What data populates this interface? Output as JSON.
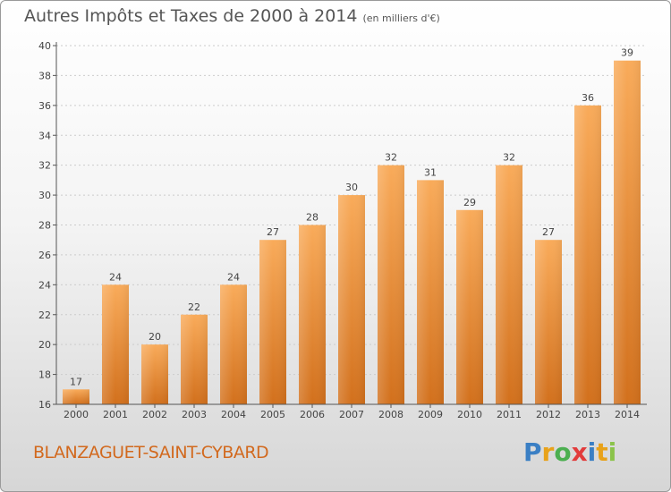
{
  "title": "Autres Impôts et Taxes de 2000 à 2014",
  "title_unit": "(en milliers d'€)",
  "commune": "BLANZAGUET-SAINT-CYBARD",
  "logo": {
    "letters": [
      "P",
      "r",
      "o",
      "x",
      "i",
      "t",
      "i"
    ],
    "colors": [
      "#3a7fc4",
      "#e8a21a",
      "#4caf50",
      "#e23c3c",
      "#3a7fc4",
      "#e8a21a",
      "#8bc34a"
    ]
  },
  "colors": {
    "bar_light": "#f9ab5a",
    "bar_dark": "#d2701c",
    "axis": "#555555",
    "grid": "#cccccc",
    "text": "#444444"
  },
  "chart_data": {
    "type": "bar",
    "categories": [
      "2000",
      "2001",
      "2002",
      "2003",
      "2004",
      "2005",
      "2006",
      "2007",
      "2008",
      "2009",
      "2010",
      "2011",
      "2012",
      "2013",
      "2014"
    ],
    "values": [
      17,
      24,
      20,
      22,
      24,
      27,
      28,
      30,
      32,
      31,
      29,
      32,
      27,
      36,
      39
    ],
    "y_ticks": [
      "16",
      "18",
      "20",
      "22",
      "24",
      "26",
      "28",
      "30",
      "32",
      "34",
      "36",
      "38",
      "40"
    ],
    "ylim": [
      16,
      40
    ],
    "grid": true,
    "data_labels": true
  }
}
